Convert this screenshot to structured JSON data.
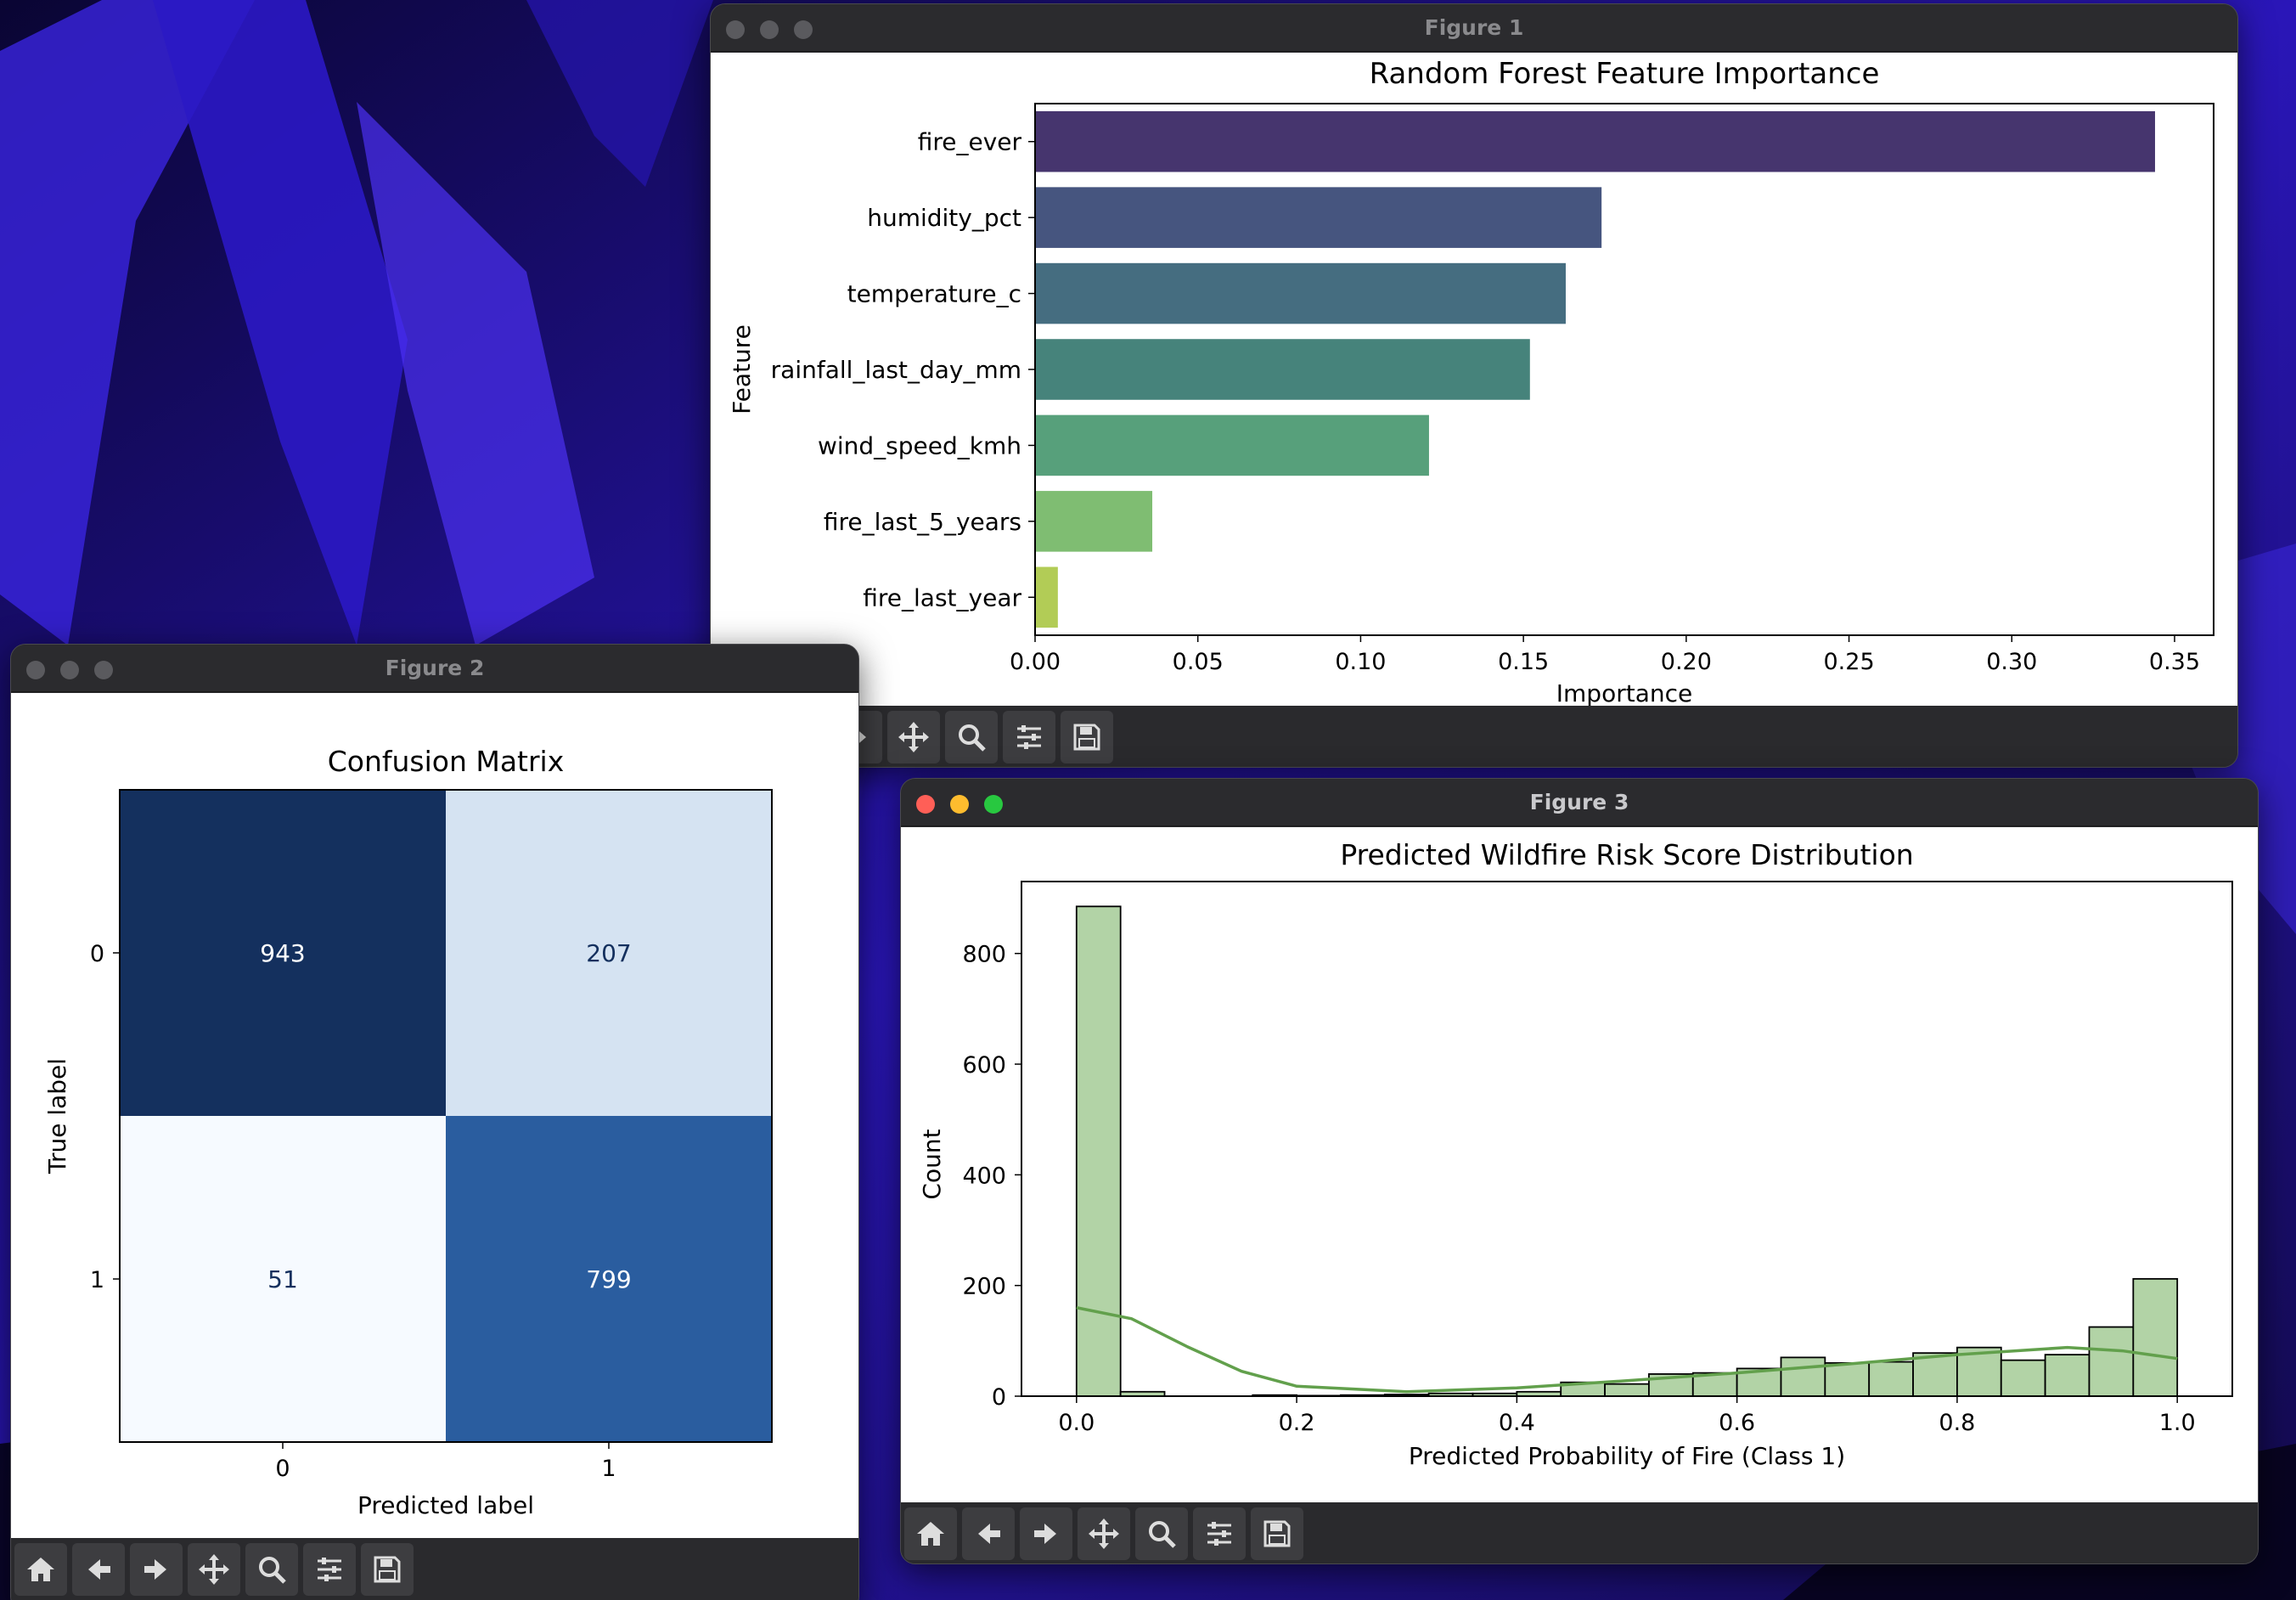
{
  "windows": {
    "fig1": {
      "title": "Figure 1"
    },
    "fig2": {
      "title": "Figure 2"
    },
    "fig3": {
      "title": "Figure 3"
    }
  },
  "toolbar_icons": [
    "home-icon",
    "back-arrow-icon",
    "forward-arrow-icon",
    "pan-icon",
    "zoom-icon",
    "configure-subplots-icon",
    "save-icon"
  ],
  "chart_data": [
    {
      "id": "feature_importance",
      "type": "bar",
      "orientation": "horizontal",
      "title": "Random Forest Feature Importance",
      "xlabel": "Importance",
      "ylabel": "Feature",
      "categories": [
        "fire_ever",
        "humidity_pct",
        "temperature_c",
        "rainfall_last_day_mm",
        "wind_speed_kmh",
        "fire_last_5_years",
        "fire_last_year"
      ],
      "values": [
        0.344,
        0.174,
        0.163,
        0.152,
        0.121,
        0.036,
        0.007
      ],
      "colors": [
        "#46356e",
        "#46557f",
        "#456d80",
        "#46837b",
        "#57a07b",
        "#7fbd72",
        "#b2cc56"
      ],
      "xlim": [
        0,
        0.362
      ],
      "xticks": [
        "0.00",
        "0.05",
        "0.10",
        "0.15",
        "0.20",
        "0.25",
        "0.30",
        "0.35"
      ],
      "grid": false
    },
    {
      "id": "confusion_matrix",
      "type": "heatmap",
      "title": "Confusion Matrix",
      "xlabel": "Predicted label",
      "ylabel": "True label",
      "xticks": [
        "0",
        "1"
      ],
      "yticks": [
        "0",
        "1"
      ],
      "values": [
        [
          943,
          207
        ],
        [
          51,
          799
        ]
      ],
      "colormap": "Blues"
    },
    {
      "id": "risk_distribution",
      "type": "histogram",
      "title": "Predicted Wildfire Risk Score Distribution",
      "xlabel": "Predicted Probability of Fire (Class 1)",
      "ylabel": "Count",
      "bin_width": 0.04,
      "bin_start": 0.0,
      "counts": [
        885,
        8,
        0,
        0,
        2,
        1,
        2,
        3,
        5,
        5,
        8,
        25,
        22,
        40,
        42,
        50,
        70,
        60,
        62,
        78,
        88,
        65,
        75,
        125,
        212
      ],
      "kde_x": [
        0.0,
        0.05,
        0.1,
        0.15,
        0.2,
        0.3,
        0.4,
        0.5,
        0.6,
        0.7,
        0.8,
        0.9,
        0.95,
        1.0
      ],
      "kde_y": [
        160,
        140,
        90,
        45,
        18,
        8,
        15,
        28,
        42,
        58,
        75,
        88,
        82,
        68
      ],
      "bar_color": "#b2d3a6",
      "kde_color": "#62a04c",
      "xlim": [
        -0.05,
        1.05
      ],
      "ylim": [
        0,
        930
      ],
      "xticks": [
        "0.0",
        "0.2",
        "0.4",
        "0.6",
        "0.8",
        "1.0"
      ],
      "yticks": [
        "0",
        "200",
        "400",
        "600",
        "800"
      ]
    }
  ]
}
